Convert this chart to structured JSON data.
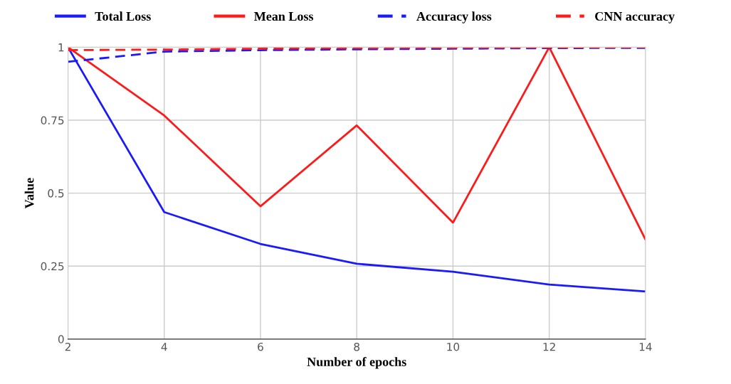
{
  "chart_data": {
    "type": "line",
    "xlabel": "Number of epochs",
    "ylabel": "Value",
    "x": [
      2,
      4,
      6,
      8,
      10,
      12,
      14
    ],
    "series": [
      {
        "name": "Total Loss",
        "color": "#1a1aff",
        "line_style": "solid",
        "values": [
          1.0,
          0.435,
          0.326,
          0.258,
          0.231,
          0.187,
          0.163
        ]
      },
      {
        "name": "Mean Loss",
        "color": "#ff1a1a",
        "line_style": "solid",
        "values": [
          1.0,
          0.766,
          0.455,
          0.732,
          0.399,
          1.0,
          0.341
        ]
      },
      {
        "name": "Accuracy loss",
        "color": "#1a1aff",
        "line_style": "dashed",
        "values": [
          0.95,
          0.985,
          0.99,
          0.993,
          0.995,
          0.997,
          0.998
        ]
      },
      {
        "name": "CNN accuracy",
        "color": "#ff1a1a",
        "line_style": "dashed",
        "values": [
          0.99,
          0.992,
          0.995,
          0.997,
          0.998,
          0.999,
          1.0
        ]
      }
    ],
    "xlim": [
      2,
      14
    ],
    "xticks": [
      2,
      4,
      6,
      8,
      10,
      12,
      14
    ],
    "ylim": [
      0,
      1
    ],
    "yticks": [
      0,
      {
        "value": 0.25,
        "label": "0.25"
      },
      {
        "value": 0.5,
        "label": "0.5"
      },
      {
        "value": 0.75,
        "label": "0.75"
      },
      1
    ],
    "grid": true,
    "legend": "top",
    "marker": "none"
  }
}
